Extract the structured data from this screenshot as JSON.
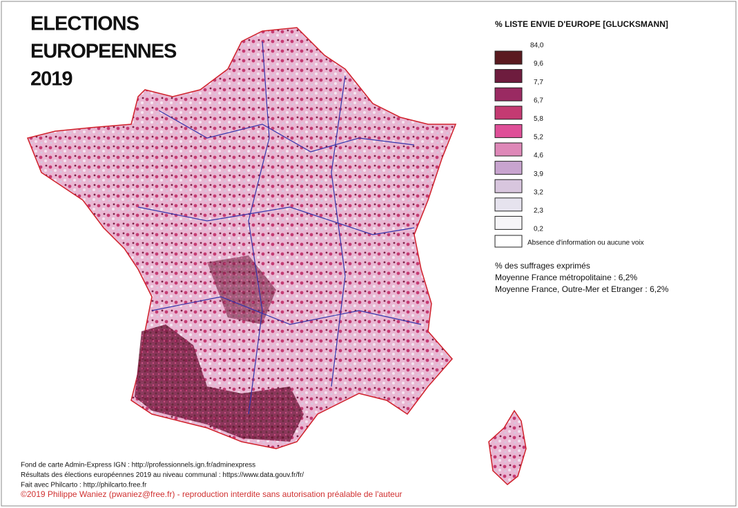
{
  "header": {
    "title_lines": [
      "ELECTIONS",
      "EUROPEENNES",
      "2019"
    ]
  },
  "legend": {
    "title": "% LISTE ENVIE D'EUROPE [GLUCKSMANN]",
    "breaks": [
      "84,0",
      "9,6",
      "7,7",
      "6,7",
      "5,8",
      "5,2",
      "4,6",
      "3,9",
      "3,2",
      "2,3",
      "0,2"
    ],
    "colors": [
      "#5a1a20",
      "#6e1c3e",
      "#9a2a62",
      "#c43a72",
      "#df4f98",
      "#de88b8",
      "#c8a4cf",
      "#d8c6de",
      "#e6e3ee",
      "#f6f5f8"
    ],
    "no_data": "Absence d'information ou aucune voix"
  },
  "notes": [
    "% des suffrages exprimés",
    "Moyenne France métropolitaine : 6,2%",
    "Moyenne France, Outre-Mer et Etranger : 6,2%"
  ],
  "sources": [
    "Fond de carte Admin-Express IGN : http://professionnels.ign.fr/adminexpress",
    "Résultats des élections européennes 2019 au niveau communal : https://www.data.gouv.fr/fr/",
    "Fait avec Philcarto : http://philcarto.free.fr"
  ],
  "copyright": "©2019 Philippe Waniez (pwaniez@free.fr) - reproduction interdite sans autorisation préalable de l'auteur"
}
